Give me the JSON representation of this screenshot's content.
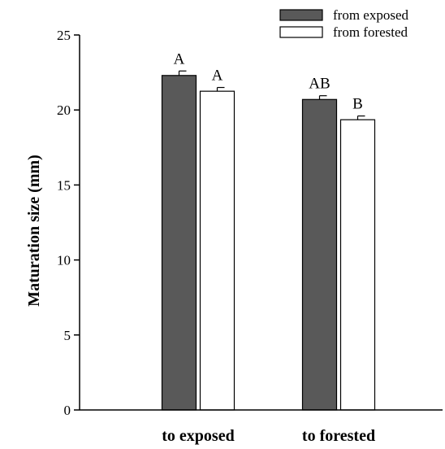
{
  "chart_data": {
    "type": "bar",
    "categories": [
      "to exposed",
      "to forested"
    ],
    "series": [
      {
        "name": "from exposed",
        "values": [
          22.3,
          20.7
        ],
        "errors": [
          0.3,
          0.25
        ],
        "labels": [
          "A",
          "AB"
        ],
        "color": "#595959"
      },
      {
        "name": "from forested",
        "values": [
          21.25,
          19.35
        ],
        "errors": [
          0.25,
          0.25
        ],
        "labels": [
          "A",
          "B"
        ],
        "color": "#ffffff"
      }
    ],
    "xlabel": "",
    "ylabel": "Maturation size (mm)",
    "ylim": [
      0,
      25
    ],
    "yticks": [
      0,
      5,
      10,
      15,
      20,
      25
    ],
    "grid": false,
    "legend": "top-right"
  }
}
